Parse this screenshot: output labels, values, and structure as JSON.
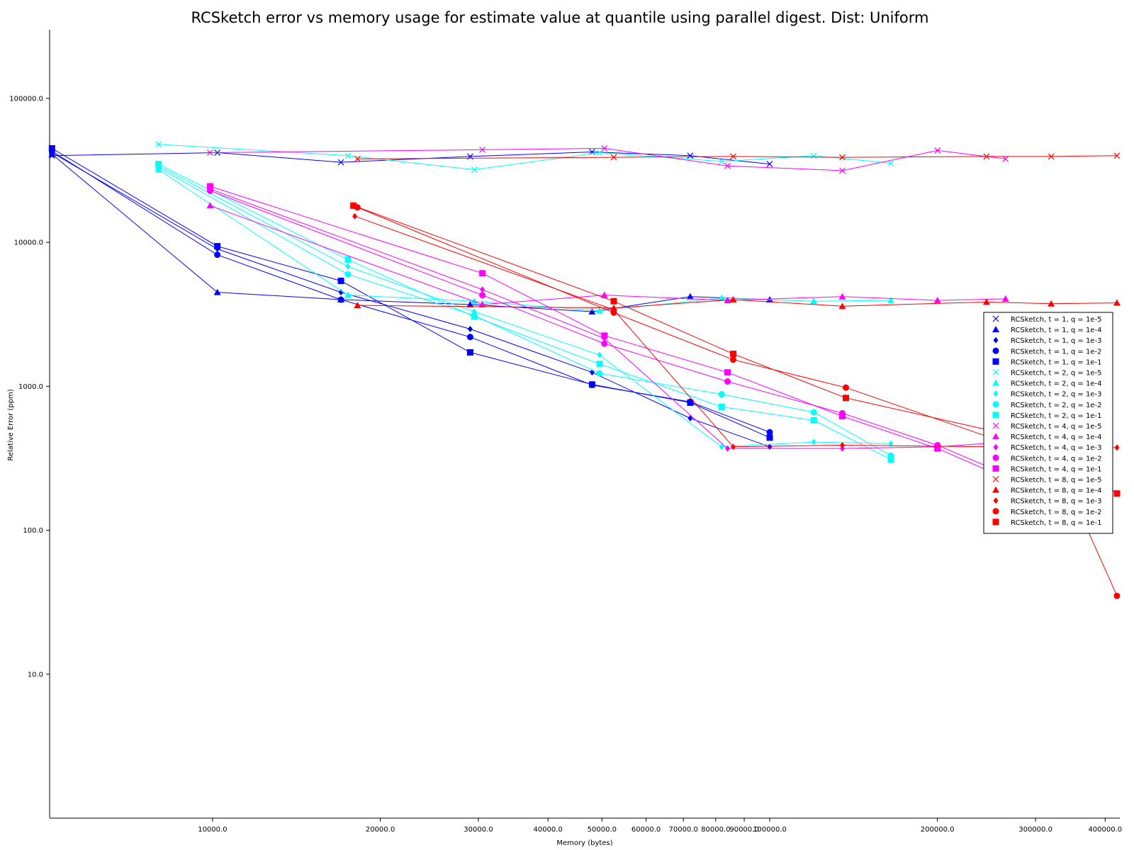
{
  "chart_data": {
    "type": "line",
    "title": "RCSketch error vs memory usage for estimate value at quantile using parallel digest. Dist: Uniform",
    "xlabel": "Memory (bytes)",
    "ylabel": "Relative Error (ppm)",
    "xscale": "log",
    "yscale": "log",
    "xlim": [
      5100,
      425000
    ],
    "ylim": [
      1.0,
      300000
    ],
    "legend_position": "right",
    "grid": false,
    "colors": {
      "t1": "#0000ff",
      "t2": "#00ffff",
      "t4": "#ff00ff",
      "t8": "#ff0000"
    },
    "x_ticks": [
      {
        "value": 10000,
        "label": "10000.0"
      },
      {
        "value": 20000,
        "label": "20000.0"
      },
      {
        "value": 30000,
        "label": "30000.0"
      },
      {
        "value": 40000,
        "label": "40000.0"
      },
      {
        "value": 50000,
        "label": "50000.0"
      },
      {
        "value": 60000,
        "label": "60000.0"
      },
      {
        "value": 70000,
        "label": "70000.0"
      },
      {
        "value": 80000,
        "label": "80000.0"
      },
      {
        "value": 90000,
        "label": "90000.0"
      },
      {
        "value": 100000,
        "label": "100000.0"
      },
      {
        "value": 200000,
        "label": "200000.0"
      },
      {
        "value": 300000,
        "label": "300000.0"
      },
      {
        "value": 400000,
        "label": "400000.0"
      }
    ],
    "y_ticks": [
      {
        "value": 10,
        "label": "10.0"
      },
      {
        "value": 100,
        "label": "100.0"
      },
      {
        "value": 1000,
        "label": "1000.0"
      },
      {
        "value": 10000,
        "label": "10000.0"
      },
      {
        "value": 100000,
        "label": "100000.0"
      }
    ],
    "series": [
      {
        "name": "RCSketch, t = 1, q = 1e-5",
        "color": "#0000ff",
        "marker": "x",
        "points": [
          [
            5150,
            40000
          ],
          [
            10200,
            42000
          ],
          [
            17000,
            36000
          ],
          [
            29000,
            39500
          ],
          [
            48000,
            42500
          ],
          [
            72000,
            40000
          ],
          [
            100000,
            35000
          ]
        ]
      },
      {
        "name": "RCSketch, t = 1, q = 1e-4",
        "color": "#0000ff",
        "marker": "triangle",
        "points": [
          [
            5150,
            41000
          ],
          [
            10200,
            4500
          ],
          [
            17000,
            4000
          ],
          [
            29000,
            3700
          ],
          [
            48000,
            3300
          ],
          [
            72000,
            4200
          ],
          [
            100000,
            4000
          ]
        ]
      },
      {
        "name": "RCSketch, t = 1, q = 1e-3",
        "color": "#0000ff",
        "marker": "diamond",
        "points": [
          [
            5150,
            42000
          ],
          [
            10200,
            9000
          ],
          [
            17000,
            4500
          ],
          [
            29000,
            2500
          ],
          [
            48000,
            1250
          ],
          [
            72000,
            600
          ],
          [
            100000,
            380
          ]
        ]
      },
      {
        "name": "RCSketch, t = 1, q = 1e-2",
        "color": "#0000ff",
        "marker": "circle",
        "points": [
          [
            5150,
            43000
          ],
          [
            10200,
            8200
          ],
          [
            17000,
            4000
          ],
          [
            29000,
            2200
          ],
          [
            48000,
            1020
          ],
          [
            72000,
            780
          ],
          [
            100000,
            480
          ]
        ]
      },
      {
        "name": "RCSketch, t = 1, q = 1e-1",
        "color": "#0000ff",
        "marker": "square",
        "points": [
          [
            5150,
            45000
          ],
          [
            10200,
            9400
          ],
          [
            17000,
            5400
          ],
          [
            29000,
            1720
          ],
          [
            48000,
            1030
          ],
          [
            72000,
            770
          ],
          [
            100000,
            440
          ]
        ]
      },
      {
        "name": "RCSketch, t = 2, q = 1e-5",
        "color": "#00ffff",
        "marker": "x",
        "points": [
          [
            8000,
            48000
          ],
          [
            17500,
            40000
          ],
          [
            29500,
            32000
          ],
          [
            49500,
            42000
          ],
          [
            82000,
            36500
          ],
          [
            120000,
            40000
          ],
          [
            165000,
            35500
          ]
        ]
      },
      {
        "name": "RCSketch, t = 2, q = 1e-4",
        "color": "#00ffff",
        "marker": "triangle",
        "points": [
          [
            8000,
            32000
          ],
          [
            17500,
            4300
          ],
          [
            29500,
            3900
          ],
          [
            49500,
            3350
          ],
          [
            82000,
            4100
          ],
          [
            120000,
            3900
          ],
          [
            165000,
            3950
          ]
        ]
      },
      {
        "name": "RCSketch, t = 2, q = 1e-3",
        "color": "#00ffff",
        "marker": "diamond",
        "points": [
          [
            8000,
            34000
          ],
          [
            17500,
            6800
          ],
          [
            29500,
            3300
          ],
          [
            49500,
            1650
          ],
          [
            82000,
            380
          ],
          [
            120000,
            410
          ],
          [
            165000,
            400
          ]
        ]
      },
      {
        "name": "RCSketch, t = 2, q = 1e-2",
        "color": "#00ffff",
        "marker": "circle",
        "points": [
          [
            8000,
            33000
          ],
          [
            17500,
            6000
          ],
          [
            29500,
            3100
          ],
          [
            49500,
            1230
          ],
          [
            82000,
            880
          ],
          [
            120000,
            660
          ],
          [
            165000,
            330
          ]
        ]
      },
      {
        "name": "RCSketch, t = 2, q = 1e-1",
        "color": "#00ffff",
        "marker": "square",
        "points": [
          [
            8000,
            35000
          ],
          [
            17500,
            7600
          ],
          [
            29500,
            3050
          ],
          [
            49500,
            1430
          ],
          [
            82000,
            720
          ],
          [
            120000,
            580
          ],
          [
            165000,
            310
          ]
        ]
      },
      {
        "name": "RCSketch, t = 4, q = 1e-5",
        "color": "#ff00ff",
        "marker": "x",
        "points": [
          [
            9900,
            42000
          ],
          [
            30500,
            44000
          ],
          [
            50500,
            45000
          ],
          [
            84000,
            34000
          ],
          [
            135000,
            31500
          ],
          [
            200000,
            43500
          ],
          [
            265000,
            38000
          ]
        ]
      },
      {
        "name": "RCSketch, t = 4, q = 1e-4",
        "color": "#ff00ff",
        "marker": "triangle",
        "points": [
          [
            9900,
            18000
          ],
          [
            30500,
            3700
          ],
          [
            50500,
            4300
          ],
          [
            84000,
            3950
          ],
          [
            135000,
            4200
          ],
          [
            200000,
            3950
          ],
          [
            265000,
            4050
          ]
        ]
      },
      {
        "name": "RCSketch, t = 4, q = 1e-3",
        "color": "#ff00ff",
        "marker": "diamond",
        "points": [
          [
            9900,
            23500
          ],
          [
            30500,
            4700
          ],
          [
            50500,
            2150
          ],
          [
            84000,
            370
          ],
          [
            135000,
            370
          ],
          [
            200000,
            380
          ],
          [
            265000,
            410
          ]
        ]
      },
      {
        "name": "RCSketch, t = 4, q = 1e-2",
        "color": "#ff00ff",
        "marker": "circle",
        "points": [
          [
            9900,
            22800
          ],
          [
            30500,
            4300
          ],
          [
            50500,
            1980
          ],
          [
            84000,
            1080
          ],
          [
            135000,
            650
          ],
          [
            200000,
            390
          ],
          [
            265000,
            245
          ]
        ]
      },
      {
        "name": "RCSketch, t = 4, q = 1e-1",
        "color": "#ff00ff",
        "marker": "square",
        "points": [
          [
            9900,
            24500
          ],
          [
            30500,
            6100
          ],
          [
            50500,
            2250
          ],
          [
            84000,
            1250
          ],
          [
            135000,
            620
          ],
          [
            200000,
            370
          ],
          [
            265000,
            230
          ]
        ]
      },
      {
        "name": "RCSketch, t = 8, q = 1e-5",
        "color": "#ff0000",
        "marker": "x",
        "points": [
          [
            18200,
            38000
          ],
          [
            52500,
            39000
          ],
          [
            86000,
            39500
          ],
          [
            135000,
            39000
          ],
          [
            245000,
            39500
          ],
          [
            320000,
            39500
          ],
          [
            420000,
            40000
          ]
        ]
      },
      {
        "name": "RCSketch, t = 8, q = 1e-4",
        "color": "#ff0000",
        "marker": "triangle",
        "points": [
          [
            18200,
            3650
          ],
          [
            52500,
            3500
          ],
          [
            86000,
            4000
          ],
          [
            135000,
            3600
          ],
          [
            245000,
            3850
          ],
          [
            320000,
            3750
          ],
          [
            420000,
            3800
          ]
        ]
      },
      {
        "name": "RCSketch, t = 8, q = 1e-3",
        "color": "#ff0000",
        "marker": "diamond",
        "points": [
          [
            18000,
            15200
          ],
          [
            52500,
            3400
          ],
          [
            86000,
            380
          ],
          [
            135000,
            390
          ],
          [
            245000,
            380
          ],
          [
            320000,
            370
          ],
          [
            420000,
            375
          ]
        ]
      },
      {
        "name": "RCSketch, t = 8, q = 1e-2",
        "color": "#ff0000",
        "marker": "circle",
        "points": [
          [
            18200,
            17500
          ],
          [
            52500,
            3250
          ],
          [
            86000,
            1530
          ],
          [
            137000,
            980
          ],
          [
            245000,
            450
          ],
          [
            320000,
            370
          ],
          [
            420000,
            35
          ]
        ]
      },
      {
        "name": "RCSketch, t = 8, q = 1e-1",
        "color": "#ff0000",
        "marker": "square",
        "points": [
          [
            17900,
            18000
          ],
          [
            52500,
            3900
          ],
          [
            86000,
            1680
          ],
          [
            137000,
            830
          ],
          [
            245000,
            500
          ],
          [
            320000,
            370
          ],
          [
            420000,
            180
          ]
        ]
      }
    ]
  }
}
